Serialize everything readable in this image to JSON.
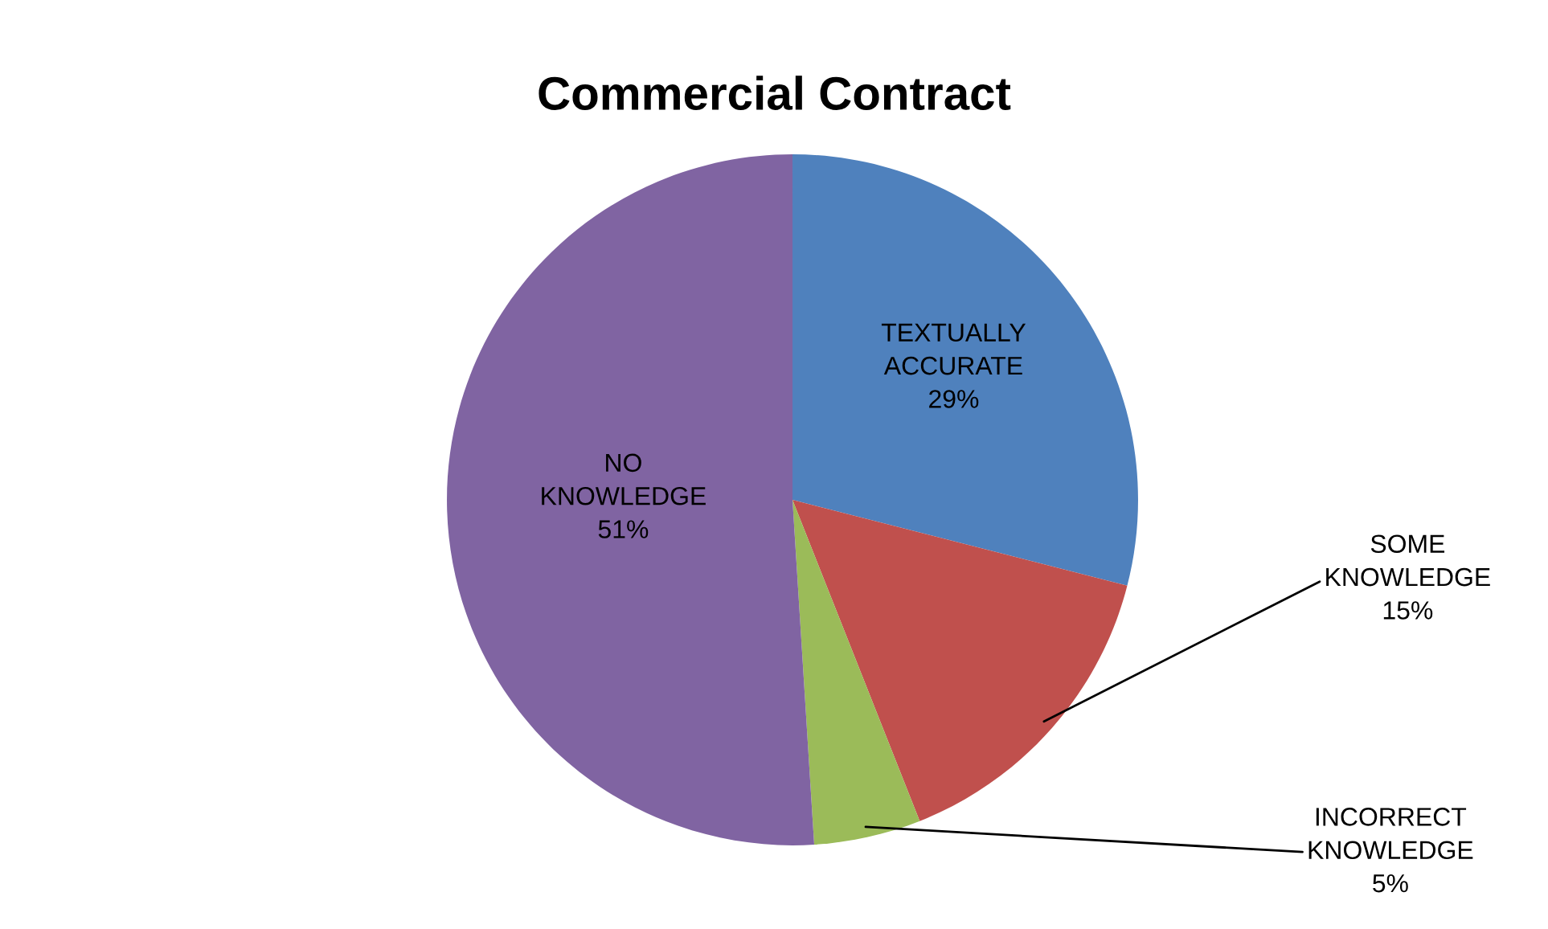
{
  "chart_data": {
    "type": "pie",
    "title": "Commercial Contract",
    "categories": [
      "TEXTUALLY ACCURATE",
      "SOME KNOWLEDGE",
      "INCORRECT KNOWLEDGE",
      "NO KNOWLEDGE"
    ],
    "values": [
      29,
      15,
      5,
      51
    ],
    "value_labels": [
      "29%",
      "15%",
      "5%",
      "51%"
    ],
    "colors": [
      "#4f81bd",
      "#c0504d",
      "#9bbb59",
      "#8064a2"
    ],
    "legend": false
  }
}
